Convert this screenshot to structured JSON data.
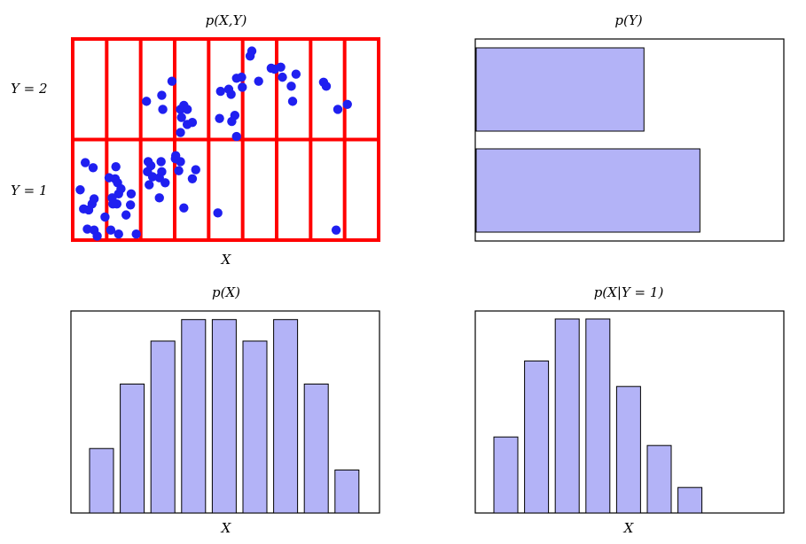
{
  "chart_data": [
    {
      "id": "joint",
      "type": "scatter",
      "title": "p(X,Y)",
      "xlabel": "X",
      "ylabel_ticks": [
        "Y = 2",
        "Y = 1"
      ],
      "x_bins": 9,
      "y_bins": 2,
      "grid_color": "#ff0000",
      "point_color": "#1f1ff0",
      "points": [
        [
          0.22,
          1.5
        ],
        [
          0.37,
          1.77
        ],
        [
          0.6,
          1.72
        ],
        [
          0.32,
          1.31
        ],
        [
          0.47,
          1.3
        ],
        [
          0.57,
          1.36
        ],
        [
          0.63,
          1.41
        ],
        [
          0.43,
          1.11
        ],
        [
          0.63,
          1.1
        ],
        [
          0.72,
          1.04
        ],
        [
          0.95,
          1.23
        ],
        [
          1.27,
          1.73
        ],
        [
          1.07,
          1.62
        ],
        [
          1.25,
          1.61
        ],
        [
          1.32,
          1.57
        ],
        [
          1.57,
          1.25
        ],
        [
          1.35,
          1.46
        ],
        [
          1.3,
          1.36
        ],
        [
          1.16,
          1.42
        ],
        [
          1.18,
          1.36
        ],
        [
          1.42,
          1.51
        ],
        [
          1.72,
          1.46
        ],
        [
          1.12,
          1.1
        ],
        [
          1.35,
          1.06
        ],
        [
          1.7,
          1.35
        ],
        [
          1.87,
          1.06
        ],
        [
          2.22,
          1.78
        ],
        [
          2.2,
          1.68
        ],
        [
          2.3,
          1.74
        ],
        [
          2.55,
          1.62
        ],
        [
          2.25,
          1.55
        ],
        [
          2.35,
          1.63
        ],
        [
          2.55,
          1.42
        ],
        [
          2.72,
          1.57
        ],
        [
          2.62,
          1.68
        ],
        [
          2.6,
          1.78
        ],
        [
          3.17,
          2.3
        ],
        [
          3.27,
          2.34
        ],
        [
          3.37,
          2.3
        ],
        [
          3.2,
          2.22
        ],
        [
          3.37,
          2.15
        ],
        [
          3.52,
          2.17
        ],
        [
          2.17,
          2.38
        ],
        [
          2.62,
          2.44
        ],
        [
          2.65,
          2.3
        ],
        [
          2.92,
          2.58
        ],
        [
          3.17,
          2.07
        ],
        [
          3.17,
          1.78
        ],
        [
          3.02,
          1.81
        ],
        [
          3.03,
          1.84
        ],
        [
          3.62,
          1.7
        ],
        [
          3.52,
          1.61
        ],
        [
          3.27,
          1.32
        ],
        [
          3.12,
          1.69
        ],
        [
          4.27,
          1.27
        ],
        [
          4.32,
          2.21
        ],
        [
          4.77,
          2.24
        ],
        [
          4.82,
          2.03
        ],
        [
          4.59,
          2.5
        ],
        [
          4.82,
          2.61
        ],
        [
          4.97,
          2.62
        ],
        [
          4.66,
          2.45
        ],
        [
          4.68,
          2.18
        ],
        [
          4.35,
          2.48
        ],
        [
          5.27,
          2.88
        ],
        [
          5.22,
          2.83
        ],
        [
          4.99,
          2.52
        ],
        [
          5.47,
          2.58
        ],
        [
          5.84,
          2.71
        ],
        [
          5.94,
          2.7
        ],
        [
          6.17,
          2.62
        ],
        [
          6.43,
          2.53
        ],
        [
          6.47,
          2.38
        ],
        [
          6.57,
          2.65
        ],
        [
          6.12,
          2.72
        ],
        [
          7.75,
          1.1
        ],
        [
          7.38,
          2.57
        ],
        [
          7.46,
          2.53
        ],
        [
          7.8,
          2.3
        ],
        [
          8.08,
          2.35
        ]
      ]
    },
    {
      "id": "marginal_y",
      "type": "bar",
      "orientation": "horizontal",
      "title": "p(Y)",
      "categories": [
        "Y = 2",
        "Y = 1"
      ],
      "values": [
        0.6,
        0.8
      ],
      "xlim": [
        0,
        1.1
      ],
      "bar_color": "#b3b3f7"
    },
    {
      "id": "marginal_x",
      "type": "bar",
      "title": "p(X)",
      "xlabel": "X",
      "categories": [
        "1",
        "2",
        "3",
        "4",
        "5",
        "6",
        "7",
        "8",
        "9"
      ],
      "values": [
        3,
        6,
        8,
        9,
        9,
        8,
        9,
        6,
        2
      ],
      "ylim": [
        0,
        9.4
      ],
      "bar_color": "#b3b3f7"
    },
    {
      "id": "conditional",
      "type": "bar",
      "title": "p(X|Y = 1)",
      "xlabel": "X",
      "categories": [
        "1",
        "2",
        "3",
        "4",
        "5",
        "6",
        "7",
        "8",
        "9"
      ],
      "values": [
        0.143,
        0.286,
        0.365,
        0.365,
        0.238,
        0.127,
        0.048,
        0,
        0
      ],
      "ylim": [
        0,
        0.38
      ],
      "bar_color": "#b3b3f7"
    }
  ]
}
